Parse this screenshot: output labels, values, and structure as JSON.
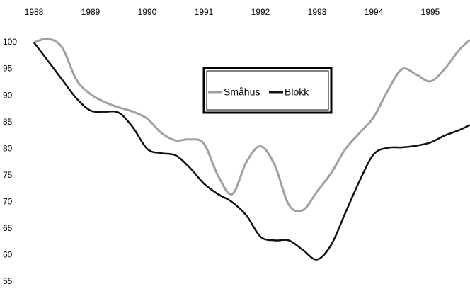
{
  "chart_data": {
    "type": "line",
    "x": [
      1988,
      1988.25,
      1988.5,
      1988.75,
      1989,
      1989.25,
      1989.5,
      1989.75,
      1990,
      1990.25,
      1990.5,
      1990.75,
      1991,
      1991.25,
      1991.5,
      1991.75,
      1992,
      1992.25,
      1992.5,
      1992.75,
      1993,
      1993.25,
      1993.5,
      1993.75,
      1994,
      1994.25,
      1994.5,
      1994.75,
      1995,
      1995.25,
      1995.5,
      1995.7
    ],
    "series": [
      {
        "name": "Småhus",
        "color": "#a0a0a0",
        "values": [
          100,
          100.7,
          99,
          93,
          90.3,
          88.8,
          87.8,
          87,
          85.7,
          83,
          81.6,
          81.8,
          81,
          75,
          71.5,
          77.5,
          80.5,
          77,
          69.5,
          68.5,
          72,
          75.5,
          80,
          83,
          86,
          91,
          95,
          94,
          92.7,
          95,
          98.5,
          100.5
        ]
      },
      {
        "name": "Blokk",
        "color": "#111111",
        "values": [
          100,
          96.5,
          93,
          89.5,
          87.2,
          87,
          86.8,
          84,
          80,
          79.2,
          78.8,
          76.5,
          73.5,
          71.5,
          70,
          67.5,
          63.5,
          62.8,
          62.8,
          61,
          59.2,
          62,
          68,
          74,
          79,
          80.2,
          80.3,
          80.6,
          81.2,
          82.5,
          83.5,
          84.5
        ]
      }
    ],
    "xlim": [
      1988,
      1995.7
    ],
    "xticks": [
      1988,
      1989,
      1990,
      1991,
      1992,
      1993,
      1994,
      1995
    ],
    "ylim": [
      55,
      100
    ],
    "yticks": [
      55,
      60,
      65,
      70,
      75,
      80,
      85,
      90,
      95,
      100
    ],
    "grid": false,
    "legend": "top"
  }
}
